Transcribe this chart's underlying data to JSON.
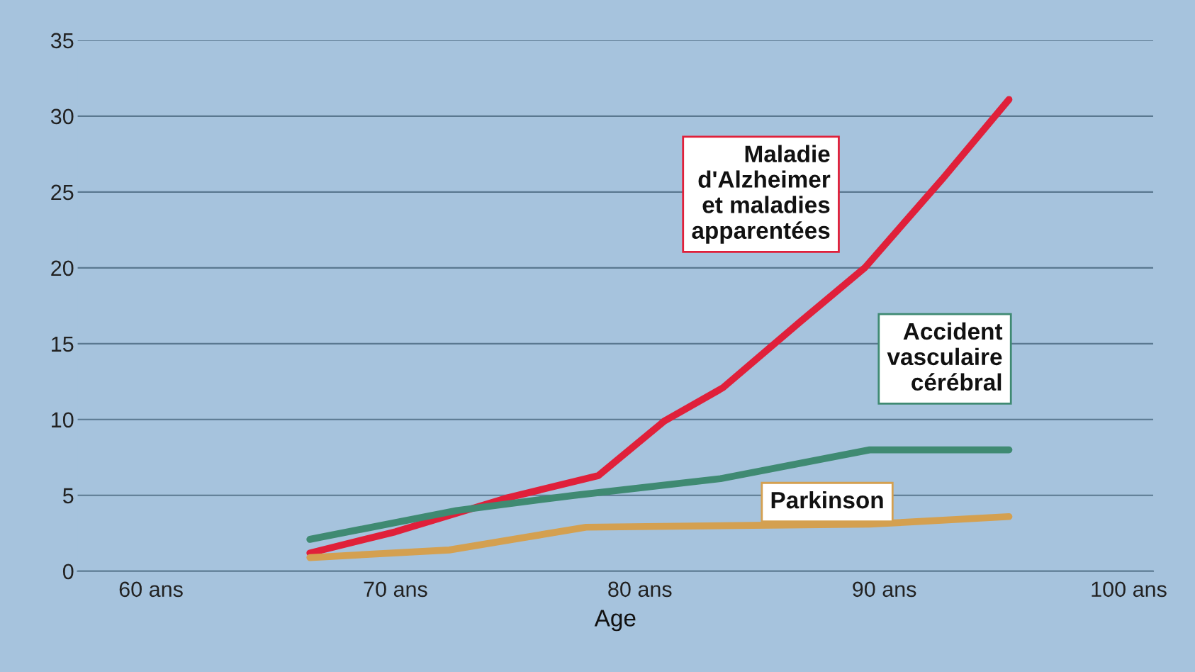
{
  "chart_data": {
    "type": "line",
    "xlabel": "Age",
    "xlim": [
      57,
      101
    ],
    "ylim": [
      0,
      35
    ],
    "xticks": [
      {
        "value": 60,
        "label": "60 ans"
      },
      {
        "value": 70,
        "label": "70 ans"
      },
      {
        "value": 80,
        "label": "80 ans"
      },
      {
        "value": 90,
        "label": "90 ans"
      },
      {
        "value": 100,
        "label": "100 ans"
      }
    ],
    "yticks": [
      0,
      5,
      10,
      15,
      20,
      25,
      30,
      35
    ],
    "grid": "y",
    "legend": false,
    "marker": "none",
    "line_style": "solid",
    "series": [
      {
        "name": "Maladie d'Alzheimer et maladies apparentées",
        "color": "#e0203a",
        "x": [
          66.5,
          70,
          74.5,
          78.3,
          81,
          83.4,
          86.6,
          89.2,
          92.4,
          95.1
        ],
        "values": [
          1.2,
          2.6,
          4.8,
          6.3,
          9.9,
          12.1,
          16.5,
          20,
          25.9,
          31.1
        ]
      },
      {
        "name": "Accident vasculaire cérébral",
        "color": "#3f8a72",
        "x": [
          66.5,
          72.5,
          77.3,
          83.3,
          89.4,
          95.1
        ],
        "values": [
          2.1,
          4.0,
          5.0,
          6.1,
          8.0,
          8.0
        ]
      },
      {
        "name": "Parkinson",
        "color": "#d4a050",
        "x": [
          66.5,
          72.2,
          77.8,
          89.4,
          95.1
        ],
        "values": [
          0.9,
          1.4,
          2.9,
          3.1,
          3.6
        ]
      }
    ]
  }
}
